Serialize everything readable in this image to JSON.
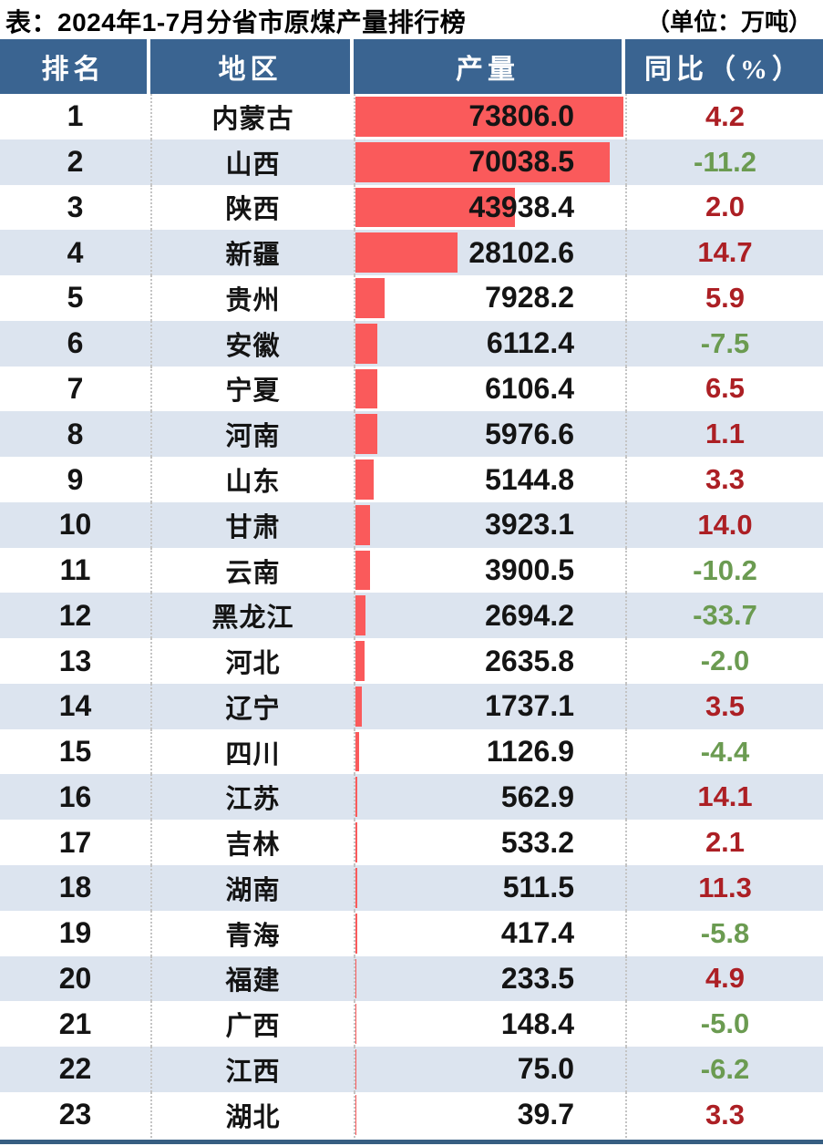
{
  "title": {
    "text": "表：2024年1-7月分省市原煤产量排行榜",
    "unit": "（单位：万吨）"
  },
  "table": {
    "headers": [
      "排名",
      "地区",
      "产量",
      "同比（%）"
    ],
    "rows": [
      {
        "rank": "1",
        "region": "内蒙古",
        "production": "73806.0",
        "yoy": "4.2"
      },
      {
        "rank": "2",
        "region": "山西",
        "production": "70038.5",
        "yoy": "-11.2"
      },
      {
        "rank": "3",
        "region": "陕西",
        "production": "43938.4",
        "yoy": "2.0"
      },
      {
        "rank": "4",
        "region": "新疆",
        "production": "28102.6",
        "yoy": "14.7"
      },
      {
        "rank": "5",
        "region": "贵州",
        "production": "7928.2",
        "yoy": "5.9"
      },
      {
        "rank": "6",
        "region": "安徽",
        "production": "6112.4",
        "yoy": "-7.5"
      },
      {
        "rank": "7",
        "region": "宁夏",
        "production": "6106.4",
        "yoy": "6.5"
      },
      {
        "rank": "8",
        "region": "河南",
        "production": "5976.6",
        "yoy": "1.1"
      },
      {
        "rank": "9",
        "region": "山东",
        "production": "5144.8",
        "yoy": "3.3"
      },
      {
        "rank": "10",
        "region": "甘肃",
        "production": "3923.1",
        "yoy": "14.0"
      },
      {
        "rank": "11",
        "region": "云南",
        "production": "3900.5",
        "yoy": "-10.2"
      },
      {
        "rank": "12",
        "region": "黑龙江",
        "production": "2694.2",
        "yoy": "-33.7"
      },
      {
        "rank": "13",
        "region": "河北",
        "production": "2635.8",
        "yoy": "-2.0"
      },
      {
        "rank": "14",
        "region": "辽宁",
        "production": "1737.1",
        "yoy": "3.5"
      },
      {
        "rank": "15",
        "region": "四川",
        "production": "1126.9",
        "yoy": "-4.4"
      },
      {
        "rank": "16",
        "region": "江苏",
        "production": "562.9",
        "yoy": "14.1"
      },
      {
        "rank": "17",
        "region": "吉林",
        "production": "533.2",
        "yoy": "2.1"
      },
      {
        "rank": "18",
        "region": "湖南",
        "production": "511.5",
        "yoy": "11.3"
      },
      {
        "rank": "19",
        "region": "青海",
        "production": "417.4",
        "yoy": "-5.8"
      },
      {
        "rank": "20",
        "region": "福建",
        "production": "233.5",
        "yoy": "4.9"
      },
      {
        "rank": "21",
        "region": "广西",
        "production": "148.4",
        "yoy": "-5.0"
      },
      {
        "rank": "22",
        "region": "江西",
        "production": "75.0",
        "yoy": "-6.2"
      },
      {
        "rank": "23",
        "region": "湖北",
        "production": "39.7",
        "yoy": "3.3"
      }
    ]
  },
  "colors": {
    "header_bg": "#3A6491",
    "alt_row": "#DCE4EF",
    "bar_red": "#FA5A5B",
    "positive_text": "#AC1F24",
    "negative_text": "#6B9B51",
    "bottom_bar": "#375E82"
  },
  "chart_data": {
    "type": "bar",
    "title": "表：2024年1-7月分省市原煤产量排行榜",
    "unit_label": "（单位：万吨）",
    "orientation": "horizontal",
    "categories": [
      "内蒙古",
      "山西",
      "陕西",
      "新疆",
      "贵州",
      "安徽",
      "宁夏",
      "河南",
      "山东",
      "甘肃",
      "云南",
      "黑龙江",
      "河北",
      "辽宁",
      "四川",
      "江苏",
      "吉林",
      "湖南",
      "青海",
      "福建",
      "广西",
      "江西",
      "湖北"
    ],
    "series": [
      {
        "name": "产量",
        "values": [
          73806.0,
          70038.5,
          43938.4,
          28102.6,
          7928.2,
          6112.4,
          6106.4,
          5976.6,
          5144.8,
          3923.1,
          3900.5,
          2694.2,
          2635.8,
          1737.1,
          1126.9,
          562.9,
          533.2,
          511.5,
          417.4,
          233.5,
          148.4,
          75.0,
          39.7
        ]
      },
      {
        "name": "同比（%）",
        "values": [
          4.2,
          -11.2,
          2.0,
          14.7,
          5.9,
          -7.5,
          6.5,
          1.1,
          3.3,
          14.0,
          -10.2,
          -33.7,
          -2.0,
          3.5,
          -4.4,
          14.1,
          2.1,
          11.3,
          -5.8,
          4.9,
          -5.0,
          -6.2,
          3.3
        ]
      }
    ],
    "xlim": [
      0,
      73806
    ],
    "xmax": 73806,
    "grid": false,
    "legend": false,
    "value_labels": true
  }
}
